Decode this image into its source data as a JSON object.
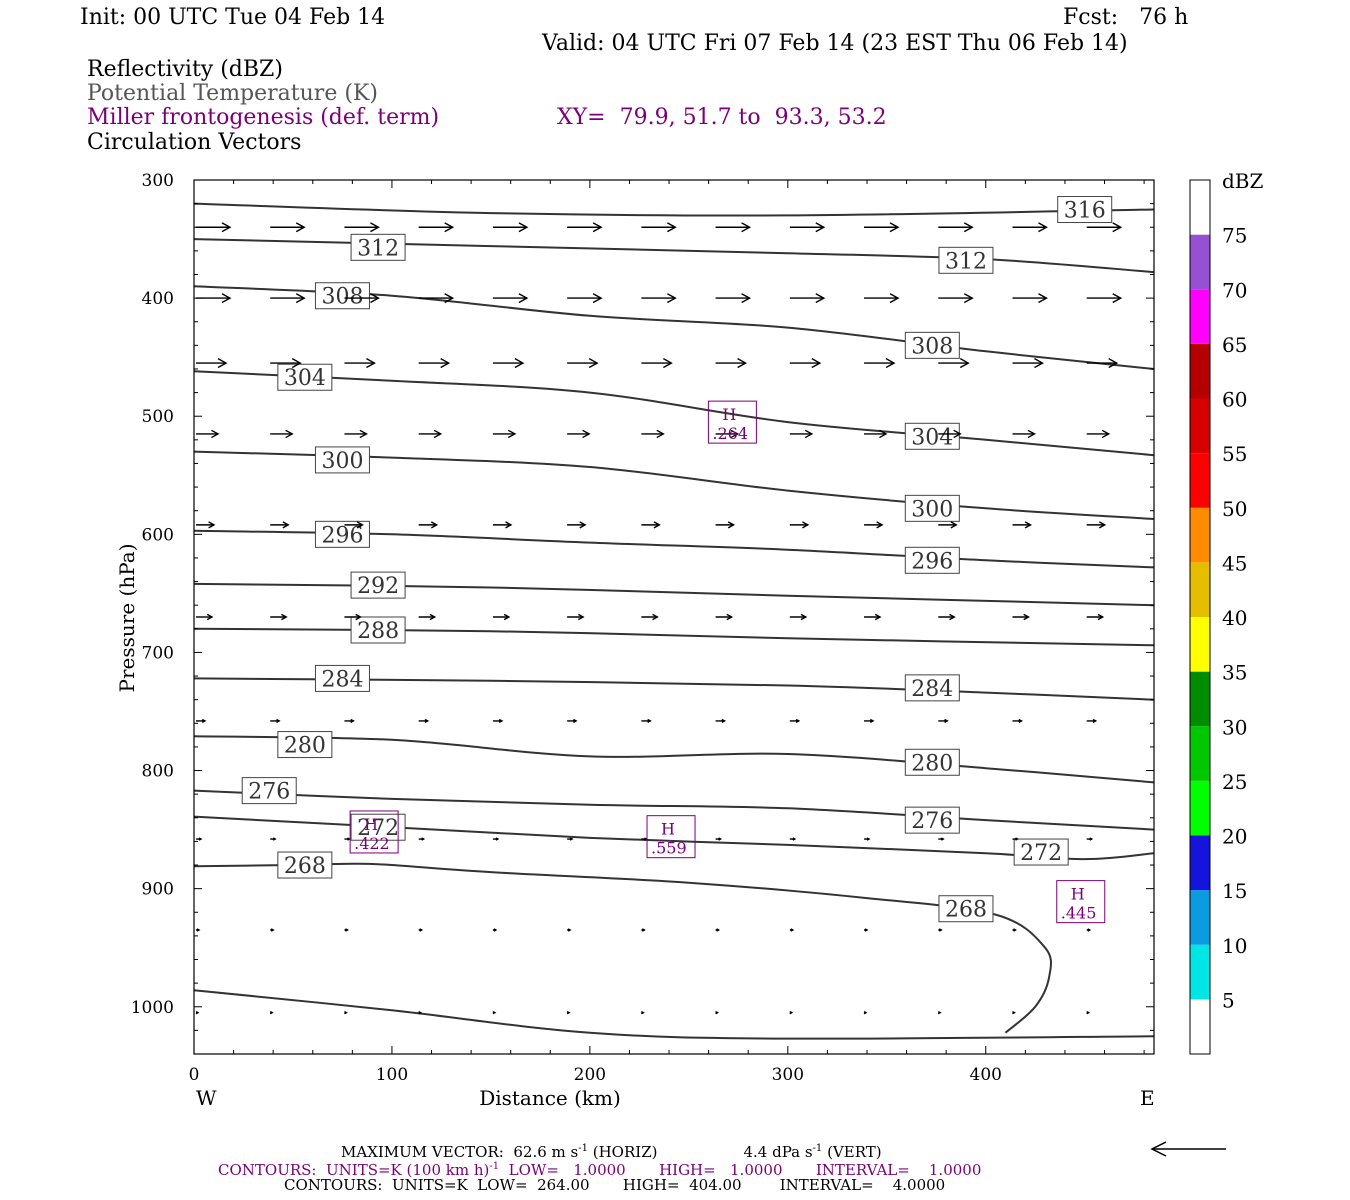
{
  "header": {
    "init": "Init: 00 UTC Tue 04 Feb 14",
    "fcst": "Fcst:   76 h",
    "valid": "Valid: 04 UTC Fri 07 Feb 14 (23 EST Thu 06 Feb 14)"
  },
  "fields": {
    "reflectivity": "Reflectivity (dBZ)",
    "theta": "Potential Temperature (K)",
    "frontogenesis": "Miller frontogenesis (def. term)",
    "xy": "XY=  79.9, 51.7 to  93.3, 53.2",
    "vectors": "Circulation Vectors"
  },
  "chart_data": {
    "type": "cross-section",
    "xlabel": "Distance (km)",
    "ylabel": "Pressure (hPa)",
    "xlim": [
      0,
      485
    ],
    "ylim": [
      300,
      1040
    ],
    "x_ticks": [
      "0",
      "100",
      "200",
      "300",
      "400"
    ],
    "x_tick_values": [
      0,
      100,
      200,
      300,
      400
    ],
    "y_ticks": [
      "300",
      "400",
      "500",
      "600",
      "700",
      "800",
      "900",
      "1000"
    ],
    "y_tick_values": [
      300,
      400,
      500,
      600,
      700,
      800,
      900,
      1000
    ],
    "x_end_labels": {
      "left": "W",
      "right": "E"
    },
    "theta_contours": [
      {
        "value": "316",
        "points": [
          [
            0,
            320
          ],
          [
            150,
            328
          ],
          [
            300,
            330
          ],
          [
            485,
            325
          ]
        ],
        "labels": [
          [
            450,
            325
          ]
        ]
      },
      {
        "value": "312",
        "points": [
          [
            0,
            350
          ],
          [
            150,
            356
          ],
          [
            300,
            362
          ],
          [
            400,
            367
          ],
          [
            485,
            378
          ]
        ],
        "labels": [
          [
            93,
            357
          ],
          [
            390,
            368
          ]
        ]
      },
      {
        "value": "308",
        "points": [
          [
            0,
            390
          ],
          [
            100,
            398
          ],
          [
            200,
            415
          ],
          [
            300,
            425
          ],
          [
            400,
            445
          ],
          [
            485,
            460
          ]
        ],
        "labels": [
          [
            75,
            398
          ],
          [
            373,
            440
          ]
        ]
      },
      {
        "value": "304",
        "points": [
          [
            0,
            462
          ],
          [
            100,
            470
          ],
          [
            200,
            480
          ],
          [
            300,
            505
          ],
          [
            400,
            520
          ],
          [
            485,
            533
          ]
        ],
        "labels": [
          [
            56,
            467
          ],
          [
            373,
            517
          ]
        ]
      },
      {
        "value": "300",
        "points": [
          [
            0,
            530
          ],
          [
            100,
            535
          ],
          [
            200,
            543
          ],
          [
            300,
            563
          ],
          [
            400,
            578
          ],
          [
            485,
            587
          ]
        ],
        "labels": [
          [
            75,
            537
          ],
          [
            373,
            578
          ]
        ]
      },
      {
        "value": "296",
        "points": [
          [
            0,
            597
          ],
          [
            100,
            600
          ],
          [
            200,
            607
          ],
          [
            300,
            613
          ],
          [
            400,
            622
          ],
          [
            485,
            628
          ]
        ],
        "labels": [
          [
            75,
            600
          ],
          [
            373,
            622
          ]
        ]
      },
      {
        "value": "292",
        "points": [
          [
            0,
            642
          ],
          [
            150,
            645
          ],
          [
            300,
            652
          ],
          [
            485,
            660
          ]
        ],
        "labels": [
          [
            93,
            643
          ]
        ]
      },
      {
        "value": "288",
        "points": [
          [
            0,
            680
          ],
          [
            150,
            682
          ],
          [
            300,
            688
          ],
          [
            485,
            694
          ]
        ],
        "labels": [
          [
            93,
            681
          ]
        ]
      },
      {
        "value": "284",
        "points": [
          [
            0,
            722
          ],
          [
            150,
            724
          ],
          [
            300,
            728
          ],
          [
            400,
            734
          ],
          [
            485,
            740
          ]
        ],
        "labels": [
          [
            75,
            722
          ],
          [
            373,
            730
          ]
        ]
      },
      {
        "value": "280",
        "points": [
          [
            0,
            771
          ],
          [
            100,
            774
          ],
          [
            200,
            788
          ],
          [
            300,
            786
          ],
          [
            400,
            798
          ],
          [
            485,
            810
          ]
        ],
        "labels": [
          [
            56,
            778
          ],
          [
            373,
            793
          ]
        ]
      },
      {
        "value": "276",
        "points": [
          [
            0,
            817
          ],
          [
            100,
            824
          ],
          [
            200,
            829
          ],
          [
            300,
            832
          ],
          [
            400,
            842
          ],
          [
            485,
            850
          ]
        ],
        "labels": [
          [
            38,
            817
          ],
          [
            373,
            842
          ]
        ]
      },
      {
        "value": "272",
        "points": [
          [
            0,
            839
          ],
          [
            100,
            848
          ],
          [
            200,
            857
          ],
          [
            300,
            863
          ],
          [
            400,
            870
          ],
          [
            450,
            875
          ],
          [
            485,
            870
          ]
        ],
        "labels": [
          [
            93,
            848
          ],
          [
            428,
            869
          ]
        ]
      },
      {
        "value": "268",
        "points": [
          [
            0,
            881
          ],
          [
            50,
            880
          ],
          [
            80,
            879
          ],
          [
            100,
            880
          ],
          [
            150,
            886
          ],
          [
            250,
            895
          ],
          [
            340,
            908
          ],
          [
            405,
            922
          ],
          [
            430,
            950
          ],
          [
            432,
            975
          ],
          [
            425,
            1000
          ],
          [
            410,
            1022
          ]
        ],
        "labels": [
          [
            56,
            880
          ],
          [
            390,
            917
          ]
        ]
      }
    ],
    "theta_lower_boundary": [
      [
        0,
        986
      ],
      [
        100,
        1003
      ],
      [
        200,
        1022
      ],
      [
        300,
        1027
      ],
      [
        485,
        1025
      ]
    ],
    "frontogenesis_maxima": [
      {
        "label": "H",
        "value": ".264",
        "x": 272,
        "p": 505
      },
      {
        "label": "H",
        "value": ".559",
        "x": 241,
        "p": 856
      },
      {
        "label": "H",
        "value": ".422",
        "x": 91,
        "p": 852
      },
      {
        "label": "H",
        "value": ".445",
        "x": 448,
        "p": 911
      }
    ],
    "vector_rows": [
      {
        "p": 340,
        "n": 13,
        "len": 34
      },
      {
        "p": 400,
        "n": 13,
        "len": 34
      },
      {
        "p": 455,
        "n": 13,
        "len": 30
      },
      {
        "p": 515,
        "n": 13,
        "len": 22
      },
      {
        "p": 592,
        "n": 13,
        "len": 18
      },
      {
        "p": 670,
        "n": 13,
        "len": 16
      },
      {
        "p": 758,
        "n": 13,
        "len": 9
      },
      {
        "p": 858,
        "n": 13,
        "len": 5
      },
      {
        "p": 935,
        "n": 13,
        "len": 3
      },
      {
        "p": 1005,
        "n": 13,
        "len": 2
      }
    ],
    "colorbar": {
      "unit": "dBZ",
      "levels": [
        "5",
        "10",
        "15",
        "20",
        "25",
        "30",
        "35",
        "40",
        "45",
        "50",
        "55",
        "60",
        "65",
        "70",
        "75"
      ],
      "colors": [
        "#ffffff",
        "#00e5e5",
        "#0a9be0",
        "#1414dc",
        "#00ff00",
        "#00c800",
        "#008c00",
        "#ffff00",
        "#e6be00",
        "#ff8c00",
        "#ff0000",
        "#d60000",
        "#b40000",
        "#ff00ff",
        "#9650d2",
        "#ffffff"
      ]
    }
  },
  "footer": {
    "maxvec": "MAXIMUM VECTOR:  62.6 m s",
    "sup1": "-1",
    "horiz": " (HORIZ)",
    "vert_val": "4.4 dPa s",
    "sup2": "-1",
    "vert": " (VERT)",
    "contours1_a": "CONTOURS:  UNITS=K (100 km h)",
    "contours1_sup": "-1",
    "contours1_b": "  LOW=   1.0000       HIGH=   1.0000       INTERVAL=    1.0000",
    "contours2": "CONTOURS:  UNITS=K  LOW=  264.00       HIGH=  404.00        INTERVAL=    4.0000"
  }
}
